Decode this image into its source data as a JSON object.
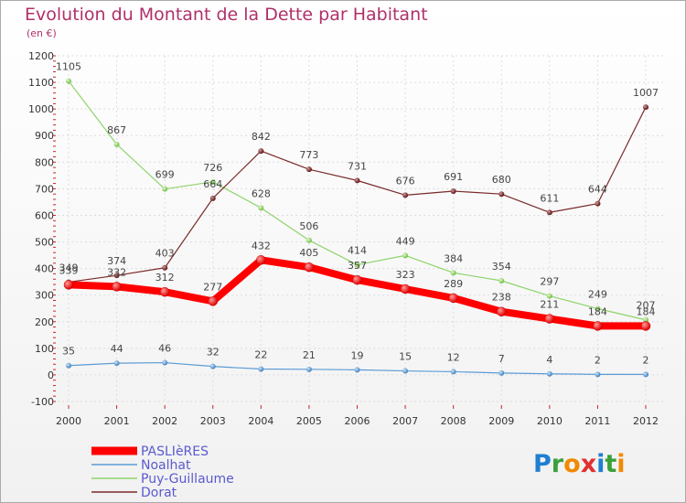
{
  "chart_data": {
    "type": "line",
    "title": "Evolution du Montant de la Dette par Habitant",
    "subtitle": "(en €)",
    "x": [
      "2000",
      "2001",
      "2002",
      "2003",
      "2004",
      "2005",
      "2006",
      "2007",
      "2008",
      "2009",
      "2010",
      "2011",
      "2012"
    ],
    "ylim": [
      -100,
      1200
    ],
    "yticks": [
      -100,
      0,
      100,
      200,
      300,
      400,
      500,
      600,
      700,
      800,
      900,
      1000,
      1100,
      1200
    ],
    "grid": true,
    "legend_position": "bottom-left",
    "series": [
      {
        "name": "PASLIèRES",
        "color": "#ff0000",
        "values": [
          339,
          332,
          312,
          277,
          432,
          405,
          357,
          323,
          289,
          238,
          211,
          184,
          184
        ]
      },
      {
        "name": "Noalhat",
        "color": "#5b9bd5",
        "values": [
          35,
          44,
          46,
          32,
          22,
          21,
          19,
          15,
          12,
          7,
          4,
          2,
          2
        ]
      },
      {
        "name": "Puy-Guillaume",
        "color": "#8fd46b",
        "values": [
          1105,
          867,
          699,
          726,
          628,
          506,
          414,
          449,
          384,
          354,
          297,
          249,
          207
        ]
      },
      {
        "name": "Dorat",
        "color": "#7a2a2a",
        "values": [
          349,
          374,
          403,
          664,
          842,
          773,
          731,
          676,
          691,
          680,
          611,
          644,
          1007
        ]
      }
    ]
  },
  "logo": {
    "text": "Proxiti"
  }
}
